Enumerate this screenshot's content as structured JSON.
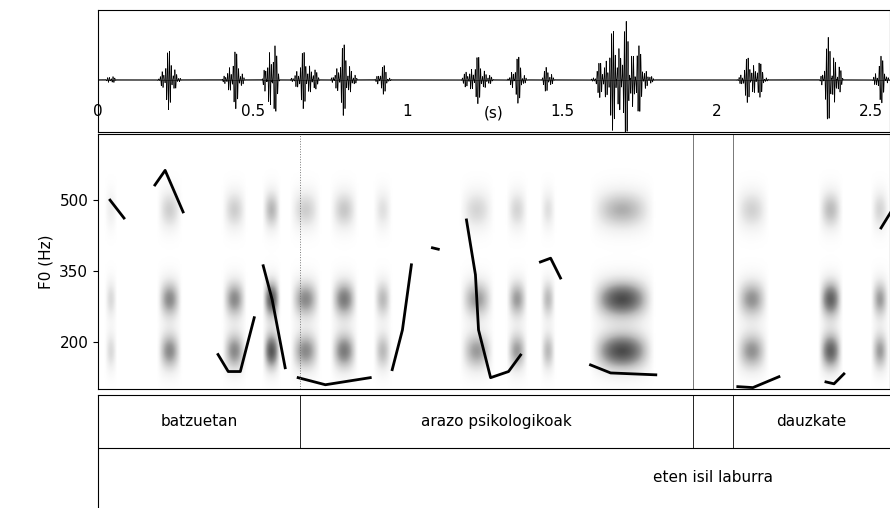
{
  "chart_data": {
    "type": "praat_f0",
    "x_label": "(s)",
    "y_label": "F0 (Hz)",
    "xlim": [
      0,
      2.56
    ],
    "xticks": [
      0,
      0.5,
      1,
      1.5,
      2,
      2.5
    ],
    "ylim": [
      100,
      640
    ],
    "yticks": [
      200,
      350,
      500
    ],
    "color": "#000000",
    "f0_segments": [
      {
        "t": [
          0.039,
          0.084
        ],
        "hz": [
          500,
          462
        ]
      },
      {
        "t": [
          0.184,
          0.217,
          0.275
        ],
        "hz": [
          532,
          563,
          475
        ]
      },
      {
        "t": [
          0.388,
          0.421,
          0.46,
          0.505
        ],
        "hz": [
          173,
          137,
          137,
          251
        ]
      },
      {
        "t": [
          0.534,
          0.563,
          0.605
        ],
        "hz": [
          361,
          289,
          145
        ]
      },
      {
        "t": [
          0.647,
          0.735,
          0.88
        ],
        "hz": [
          124,
          109,
          124
        ]
      },
      {
        "t": [
          0.951,
          0.984,
          1.013
        ],
        "hz": [
          141,
          225,
          363
        ]
      },
      {
        "t": [
          1.081,
          1.1
        ],
        "hz": [
          399,
          396
        ]
      },
      {
        "t": [
          1.191,
          1.22,
          1.23,
          1.269,
          1.327,
          1.366
        ],
        "hz": [
          458,
          342,
          225,
          124,
          137,
          172
        ]
      },
      {
        "t": [
          1.43,
          1.463,
          1.495
        ],
        "hz": [
          369,
          377,
          335
        ]
      },
      {
        "t": [
          1.592,
          1.657,
          1.803
        ],
        "hz": [
          151,
          134,
          130
        ]
      },
      {
        "t": [
          2.068,
          2.117,
          2.201
        ],
        "hz": [
          105,
          103,
          126
        ]
      },
      {
        "t": [
          2.353,
          2.379,
          2.411
        ],
        "hz": [
          115,
          111,
          132
        ]
      },
      {
        "t": [
          2.531,
          2.563
        ],
        "hz": [
          441,
          475
        ]
      }
    ],
    "waveform_bursts": [
      [
        0.02,
        0.06,
        0.1
      ],
      [
        0.19,
        0.27,
        0.5
      ],
      [
        0.4,
        0.48,
        0.5
      ],
      [
        0.53,
        0.59,
        0.9
      ],
      [
        0.62,
        0.72,
        0.5
      ],
      [
        0.75,
        0.84,
        0.6
      ],
      [
        0.89,
        0.95,
        0.25
      ],
      [
        1.17,
        1.28,
        0.4
      ],
      [
        1.32,
        1.39,
        0.4
      ],
      [
        1.43,
        1.48,
        0.25
      ],
      [
        1.59,
        1.8,
        1.0
      ],
      [
        2.06,
        2.17,
        0.45
      ],
      [
        2.33,
        2.41,
        0.8
      ],
      [
        2.5,
        2.56,
        0.4
      ]
    ],
    "spectrogram_bands_hz": [
      180,
      290,
      480
    ],
    "tiers": [
      {
        "intervals": [
          {
            "start": 0,
            "end": 0.654,
            "label": "batzuetan"
          },
          {
            "start": 0.654,
            "end": 1.922,
            "label": "arazo psikologikoak"
          },
          {
            "start": 1.922,
            "end": 2.052,
            "label": null
          },
          {
            "start": 2.052,
            "end": 2.56,
            "label": "dauzkate"
          }
        ]
      },
      {
        "intervals": [
          {
            "start": 1.922,
            "end": 2.052,
            "label": "eten isil laburra"
          }
        ]
      }
    ]
  }
}
